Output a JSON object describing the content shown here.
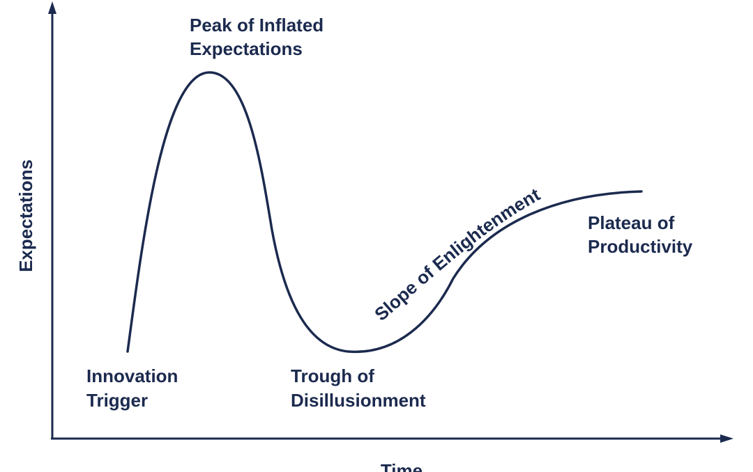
{
  "colors": {
    "ink": "#1b2a4e",
    "background": "#ffffff"
  },
  "axes": {
    "y_label": "Expectations",
    "x_label": "Time"
  },
  "phases": {
    "innovation_trigger": [
      "Innovation",
      "Trigger"
    ],
    "peak": [
      "Peak of Inflated",
      "Expectations"
    ],
    "trough": [
      "Trough of",
      "Disillusionment"
    ],
    "slope": "Slope of Enlightenment",
    "plateau": [
      "Plateau of",
      "Productivity"
    ]
  }
}
